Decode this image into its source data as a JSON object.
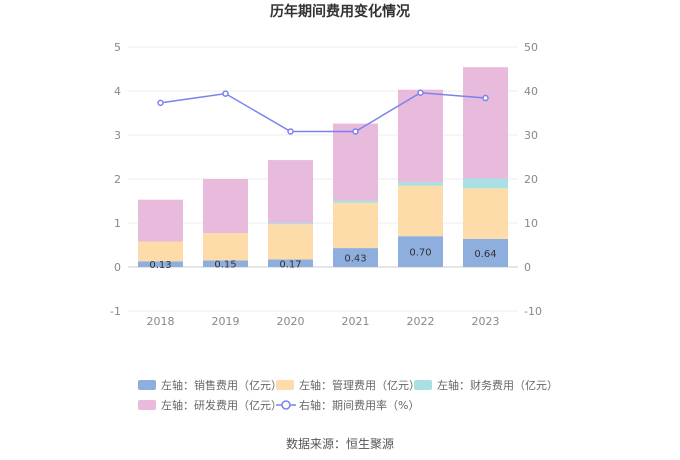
{
  "chart_data": {
    "type": "bar",
    "title": "历年期间费用变化情况",
    "categories": [
      "2018",
      "2019",
      "2020",
      "2021",
      "2022",
      "2023"
    ],
    "left_axis": {
      "ylim": [
        -1,
        5
      ],
      "ticks": [
        "-1",
        "0",
        "1",
        "2",
        "3",
        "4",
        "5"
      ]
    },
    "right_axis": {
      "ylim": [
        -10,
        50
      ],
      "ticks": [
        "-10",
        "0",
        "10",
        "20",
        "30",
        "40",
        "50"
      ]
    },
    "stacked": true,
    "series": [
      {
        "name": "左轴：销售费用（亿元）",
        "axis": "left",
        "type": "bar",
        "color": "#8eaedd",
        "values": [
          0.13,
          0.15,
          0.17,
          0.43,
          0.7,
          0.64
        ],
        "labels": [
          "0.13",
          "0.15",
          "0.17",
          "0.43",
          "0.70",
          "0.64"
        ]
      },
      {
        "name": "左轴：管理费用（亿元）",
        "axis": "left",
        "type": "bar",
        "color": "#fddcaa",
        "values": [
          0.45,
          0.62,
          0.8,
          1.03,
          1.15,
          1.15
        ]
      },
      {
        "name": "左轴：财务费用（亿元）",
        "axis": "left",
        "type": "bar",
        "color": "#a9e0e3",
        "values": [
          0.0,
          0.0,
          0.03,
          0.05,
          0.08,
          0.22
        ]
      },
      {
        "name": "左轴：研发费用（亿元）",
        "axis": "left",
        "type": "bar",
        "color": "#e8bbdc",
        "values": [
          0.95,
          1.23,
          1.43,
          1.75,
          2.1,
          2.53
        ]
      },
      {
        "name": "右轴：期间费用率（%）",
        "axis": "right",
        "type": "line",
        "color": "#7b82ee",
        "values": [
          37.3,
          39.4,
          30.8,
          30.8,
          39.6,
          38.4
        ]
      }
    ],
    "grid": true,
    "legend_position": "bottom"
  },
  "footer": {
    "source": "数据来源：恒生聚源"
  }
}
